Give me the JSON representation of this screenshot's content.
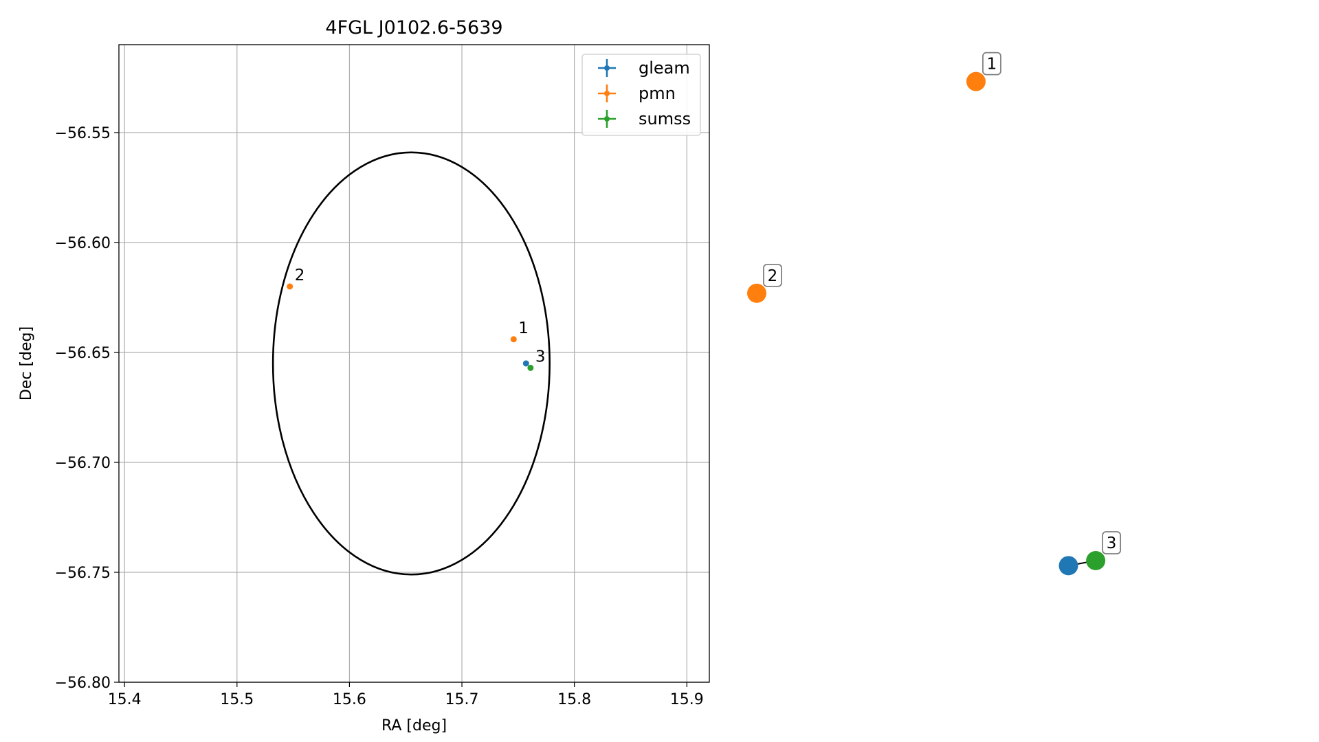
{
  "chart_data": [
    {
      "type": "scatter",
      "title": "4FGL J0102.6-5639",
      "xlabel": "RA [deg]",
      "ylabel": "Dec [deg]",
      "xlim": [
        15.395,
        15.92
      ],
      "ylim": [
        -56.8,
        -56.51
      ],
      "grid": true,
      "legend_position": "top-right",
      "x_ticks": [
        15.4,
        15.5,
        15.6,
        15.7,
        15.8,
        15.9
      ],
      "x_tick_labels": [
        "15.4",
        "15.5",
        "15.6",
        "15.7",
        "15.8",
        "15.9"
      ],
      "y_ticks": [
        -56.55,
        -56.6,
        -56.65,
        -56.7,
        -56.75,
        -56.8
      ],
      "y_tick_labels": [
        "−56.55",
        "−56.60",
        "−56.65",
        "−56.70",
        "−56.75",
        "−56.80"
      ],
      "ellipse": {
        "center_ra": 15.655,
        "center_dec": -56.655,
        "half_width_ra": 0.123,
        "half_height_dec": 0.096,
        "color": "#000000"
      },
      "series": [
        {
          "name": "gleam",
          "color": "#1f77b4",
          "points": [
            {
              "ra": 15.757,
              "dec": -56.655
            }
          ]
        },
        {
          "name": "pmn",
          "color": "#ff7f0e",
          "points": [
            {
              "ra": 15.746,
              "dec": -56.644,
              "label": "1"
            },
            {
              "ra": 15.547,
              "dec": -56.62,
              "label": "2"
            }
          ]
        },
        {
          "name": "sumss",
          "color": "#2ca02c",
          "points": [
            {
              "ra": 15.761,
              "dec": -56.657,
              "label": "3"
            }
          ]
        }
      ]
    },
    {
      "type": "scatter",
      "grid": false,
      "axes_visible": false,
      "xlim": [
        0,
        1
      ],
      "ylim": [
        0,
        1
      ],
      "link_color": "#000000",
      "nodes": [
        {
          "x": 0.467,
          "y": 0.958,
          "color": "#ff7f0e",
          "label": "1",
          "series": "pmn"
        },
        {
          "x": 0.0,
          "y": 0.623,
          "color": "#ff7f0e",
          "label": "2",
          "series": "pmn"
        },
        {
          "x": 0.664,
          "y": 0.192,
          "color": "#1f77b4",
          "series": "gleam"
        },
        {
          "x": 0.722,
          "y": 0.2,
          "color": "#2ca02c",
          "label": "3",
          "series": "sumss"
        }
      ],
      "links": [
        [
          2,
          3
        ]
      ]
    }
  ]
}
